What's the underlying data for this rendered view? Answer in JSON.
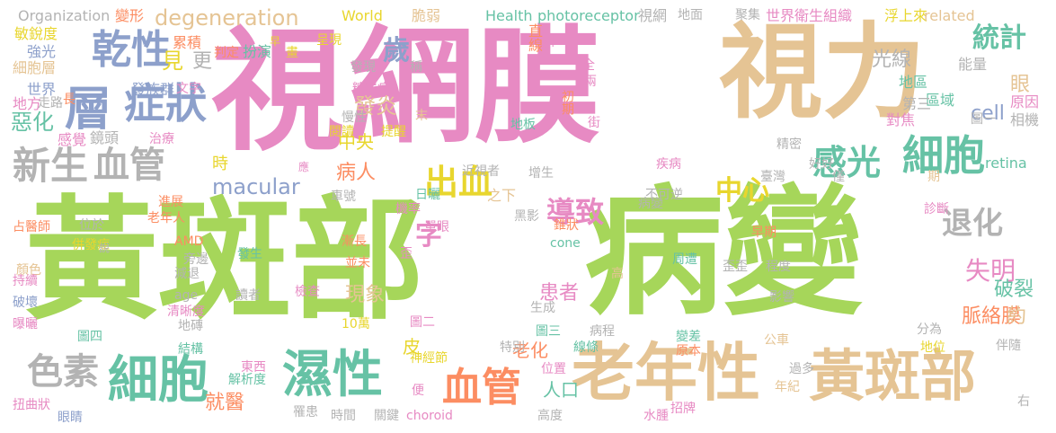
{
  "palette": {
    "green": "#a6d65a",
    "pink": "#e78ac3",
    "tan": "#e5c494",
    "teal": "#66c2a5",
    "orange": "#fc8d62",
    "blue": "#8da0cb",
    "yellow": "#e8d62e",
    "gray": "#b3b3b3"
  },
  "words": [
    {
      "text": "黃斑部",
      "color": "green"
    },
    {
      "text": "病變",
      "color": "green"
    },
    {
      "text": "視",
      "color": "pink"
    },
    {
      "text": "網膜",
      "color": "pink"
    },
    {
      "text": "視力",
      "color": "tan"
    },
    {
      "text": "老年性",
      "color": "tan"
    },
    {
      "text": "黃斑部",
      "color": "tan"
    },
    {
      "text": "乾性",
      "color": "blue"
    },
    {
      "text": "層",
      "color": "blue"
    },
    {
      "text": "症狀",
      "color": "blue"
    },
    {
      "text": "新生",
      "color": "gray"
    },
    {
      "text": "血管",
      "color": "gray"
    },
    {
      "text": "色素",
      "color": "gray"
    },
    {
      "text": "細胞",
      "color": "teal"
    },
    {
      "text": "濕性",
      "color": "teal"
    },
    {
      "text": "血管",
      "color": "orange"
    },
    {
      "text": "感光",
      "color": "teal"
    },
    {
      "text": "細胞",
      "color": "teal"
    },
    {
      "text": "出血",
      "color": "yellow"
    },
    {
      "text": "導致",
      "color": "pink"
    },
    {
      "text": "中心",
      "color": "yellow"
    },
    {
      "text": "退化",
      "color": "gray"
    },
    {
      "text": "失明",
      "color": "pink"
    },
    {
      "text": "統計",
      "color": "teal"
    },
    {
      "text": "macular",
      "color": "blue"
    },
    {
      "text": "degeneration",
      "color": "tan"
    },
    {
      "text": "字",
      "color": "pink"
    },
    {
      "text": "歲",
      "color": "blue"
    },
    {
      "text": "發炎",
      "color": "tan"
    },
    {
      "text": "見",
      "color": "yellow"
    },
    {
      "text": "更",
      "color": "gray"
    },
    {
      "text": "惡化",
      "color": "teal"
    },
    {
      "text": "破裂",
      "color": "teal"
    },
    {
      "text": "脈絡膜",
      "color": "orange"
    },
    {
      "text": "約",
      "color": "tan"
    },
    {
      "text": "光線",
      "color": "gray"
    },
    {
      "text": "眼",
      "color": "tan"
    },
    {
      "text": "現象",
      "color": "tan"
    },
    {
      "text": "患者",
      "color": "pink"
    },
    {
      "text": "人口",
      "color": "teal"
    },
    {
      "text": "皮",
      "color": "yellow"
    },
    {
      "text": "老化",
      "color": "orange"
    },
    {
      "text": "就醫",
      "color": "orange"
    },
    {
      "text": "中央",
      "color": "yellow"
    },
    {
      "text": "病人",
      "color": "orange"
    },
    {
      "text": "時",
      "color": "yellow"
    },
    {
      "text": "cell",
      "color": "blue"
    },
    {
      "text": "retina",
      "color": "teal"
    },
    {
      "text": "Organization",
      "color": "gray"
    },
    {
      "text": "變形",
      "color": "orange"
    },
    {
      "text": "World",
      "color": "yellow"
    },
    {
      "text": "脆弱",
      "color": "tan"
    },
    {
      "text": "Health",
      "color": "teal"
    },
    {
      "text": "photoreceptor",
      "color": "teal"
    },
    {
      "text": "視網",
      "color": "gray"
    },
    {
      "text": "地面",
      "color": "gray"
    },
    {
      "text": "聚集",
      "color": "gray"
    },
    {
      "text": "世界衛生組織",
      "color": "pink"
    },
    {
      "text": "浮上來",
      "color": "yellow"
    },
    {
      "text": "related",
      "color": "tan"
    },
    {
      "text": "敏銳度",
      "color": "yellow"
    },
    {
      "text": "強光",
      "color": "blue"
    },
    {
      "text": "細胞層",
      "color": "tan"
    },
    {
      "text": "世界",
      "color": "blue"
    },
    {
      "text": "地方",
      "color": "pink"
    },
    {
      "text": "感覺",
      "color": "pink"
    },
    {
      "text": "鏡頭",
      "color": "gray"
    },
    {
      "text": "累積",
      "color": "orange"
    },
    {
      "text": "判定",
      "color": "orange"
    },
    {
      "text": "扮演",
      "color": "teal"
    },
    {
      "text": "呈現",
      "color": "yellow"
    },
    {
      "text": "稱",
      "color": "gray"
    },
    {
      "text": "眼科",
      "color": "pink"
    },
    {
      "text": "直線",
      "color": "orange"
    },
    {
      "text": "發族群",
      "color": "blue"
    },
    {
      "text": "文字",
      "color": "pink"
    },
    {
      "text": "治療",
      "color": "pink"
    },
    {
      "text": "發現",
      "color": "gray"
    },
    {
      "text": "糖尿病",
      "color": "pink"
    },
    {
      "text": "初期",
      "color": "orange"
    },
    {
      "text": "地板",
      "color": "teal"
    },
    {
      "text": "地區",
      "color": "teal"
    },
    {
      "text": "區域",
      "color": "teal"
    },
    {
      "text": "能量",
      "color": "gray"
    },
    {
      "text": "原因",
      "color": "pink"
    },
    {
      "text": "第三",
      "color": "gray"
    },
    {
      "text": "對焦",
      "color": "pink"
    },
    {
      "text": "相機",
      "color": "gray"
    },
    {
      "text": "圖一",
      "color": "gray"
    },
    {
      "text": "閱讀",
      "color": "yellow"
    },
    {
      "text": "提醒",
      "color": "yellow"
    },
    {
      "text": "末",
      "color": "tan"
    },
    {
      "text": "近視者",
      "color": "gray"
    },
    {
      "text": "增生",
      "color": "gray"
    },
    {
      "text": "疾病",
      "color": "pink"
    },
    {
      "text": "精密",
      "color": "gray"
    },
    {
      "text": "好好",
      "color": "gray"
    },
    {
      "text": "期",
      "color": "tan"
    },
    {
      "text": "臺灣",
      "color": "gray"
    },
    {
      "text": "僅",
      "color": "gray"
    },
    {
      "text": "應",
      "color": "pink"
    },
    {
      "text": "占醫師",
      "color": "orange"
    },
    {
      "text": "進展",
      "color": "orange"
    },
    {
      "text": "老年人",
      "color": "orange"
    },
    {
      "text": "位於",
      "color": "gray"
    },
    {
      "text": "併發症",
      "color": "yellow"
    },
    {
      "text": "車號",
      "color": "gray"
    },
    {
      "text": "日曬",
      "color": "teal"
    },
    {
      "text": "之下",
      "color": "tan"
    },
    {
      "text": "不可逆",
      "color": "gray"
    },
    {
      "text": "機率",
      "color": "pink"
    },
    {
      "text": "單眼",
      "color": "pink"
    },
    {
      "text": "黑影",
      "color": "gray"
    },
    {
      "text": "錐狀",
      "color": "orange"
    },
    {
      "text": "病變",
      "color": "gray"
    },
    {
      "text": "診斷",
      "color": "pink"
    },
    {
      "text": "顏色",
      "color": "tan"
    },
    {
      "text": "AMD",
      "color": "orange"
    },
    {
      "text": "說",
      "color": "gray"
    },
    {
      "text": "旁邊",
      "color": "gray"
    },
    {
      "text": "發生",
      "color": "teal"
    },
    {
      "text": "漸長",
      "color": "orange"
    },
    {
      "text": "並未",
      "color": "orange"
    },
    {
      "text": "歪",
      "color": "pink"
    },
    {
      "text": "cone",
      "color": "teal"
    },
    {
      "text": "早期",
      "color": "orange"
    },
    {
      "text": "持續",
      "color": "pink"
    },
    {
      "text": "減退",
      "color": "gray"
    },
    {
      "text": "age",
      "color": "gray"
    },
    {
      "text": "周遭",
      "color": "teal"
    },
    {
      "text": "歪歪",
      "color": "gray"
    },
    {
      "text": "程度",
      "color": "gray"
    },
    {
      "text": "高",
      "color": "tan"
    },
    {
      "text": "破壞",
      "color": "blue"
    },
    {
      "text": "讀者",
      "color": "gray"
    },
    {
      "text": "檢查",
      "color": "pink"
    },
    {
      "text": "影響",
      "color": "gray"
    },
    {
      "text": "清晰度",
      "color": "pink"
    },
    {
      "text": "生成",
      "color": "gray"
    },
    {
      "text": "曝曬",
      "color": "pink"
    },
    {
      "text": "地磚",
      "color": "gray"
    },
    {
      "text": "10萬",
      "color": "yellow"
    },
    {
      "text": "圖二",
      "color": "pink"
    },
    {
      "text": "圖三",
      "color": "teal"
    },
    {
      "text": "病程",
      "color": "gray"
    },
    {
      "text": "分為",
      "color": "gray"
    },
    {
      "text": "公車",
      "color": "tan"
    },
    {
      "text": "伴隨",
      "color": "gray"
    },
    {
      "text": "地位",
      "color": "yellow"
    },
    {
      "text": "圖四",
      "color": "teal"
    },
    {
      "text": "特別",
      "color": "gray"
    },
    {
      "text": "線條",
      "color": "teal"
    },
    {
      "text": "變差",
      "color": "teal"
    },
    {
      "text": "原本",
      "color": "orange"
    },
    {
      "text": "結構",
      "color": "teal"
    },
    {
      "text": "神經節",
      "color": "yellow"
    },
    {
      "text": "東西",
      "color": "pink"
    },
    {
      "text": "位置",
      "color": "pink"
    },
    {
      "text": "過多",
      "color": "gray"
    },
    {
      "text": "年紀",
      "color": "tan"
    },
    {
      "text": "扭曲狀",
      "color": "pink"
    },
    {
      "text": "眼睛",
      "color": "blue"
    },
    {
      "text": "解析度",
      "color": "teal"
    },
    {
      "text": "罹患",
      "color": "gray"
    },
    {
      "text": "時間",
      "color": "gray"
    },
    {
      "text": "關鍵",
      "color": "gray"
    },
    {
      "text": "choroid",
      "color": "pink"
    },
    {
      "text": "便",
      "color": "pink"
    },
    {
      "text": "水腫",
      "color": "pink"
    },
    {
      "text": "招牌",
      "color": "pink"
    },
    {
      "text": "高度",
      "color": "gray"
    },
    {
      "text": "右",
      "color": "gray"
    },
    {
      "text": "全",
      "color": "pink"
    },
    {
      "text": "兩",
      "color": "pink"
    },
    {
      "text": "街",
      "color": "pink"
    },
    {
      "text": "長",
      "color": "orange"
    },
    {
      "text": "走路",
      "color": "gray"
    },
    {
      "text": "慢性",
      "color": "gray"
    },
    {
      "text": "畫",
      "color": "yellow"
    },
    {
      "text": "早",
      "color": "yellow"
    }
  ]
}
